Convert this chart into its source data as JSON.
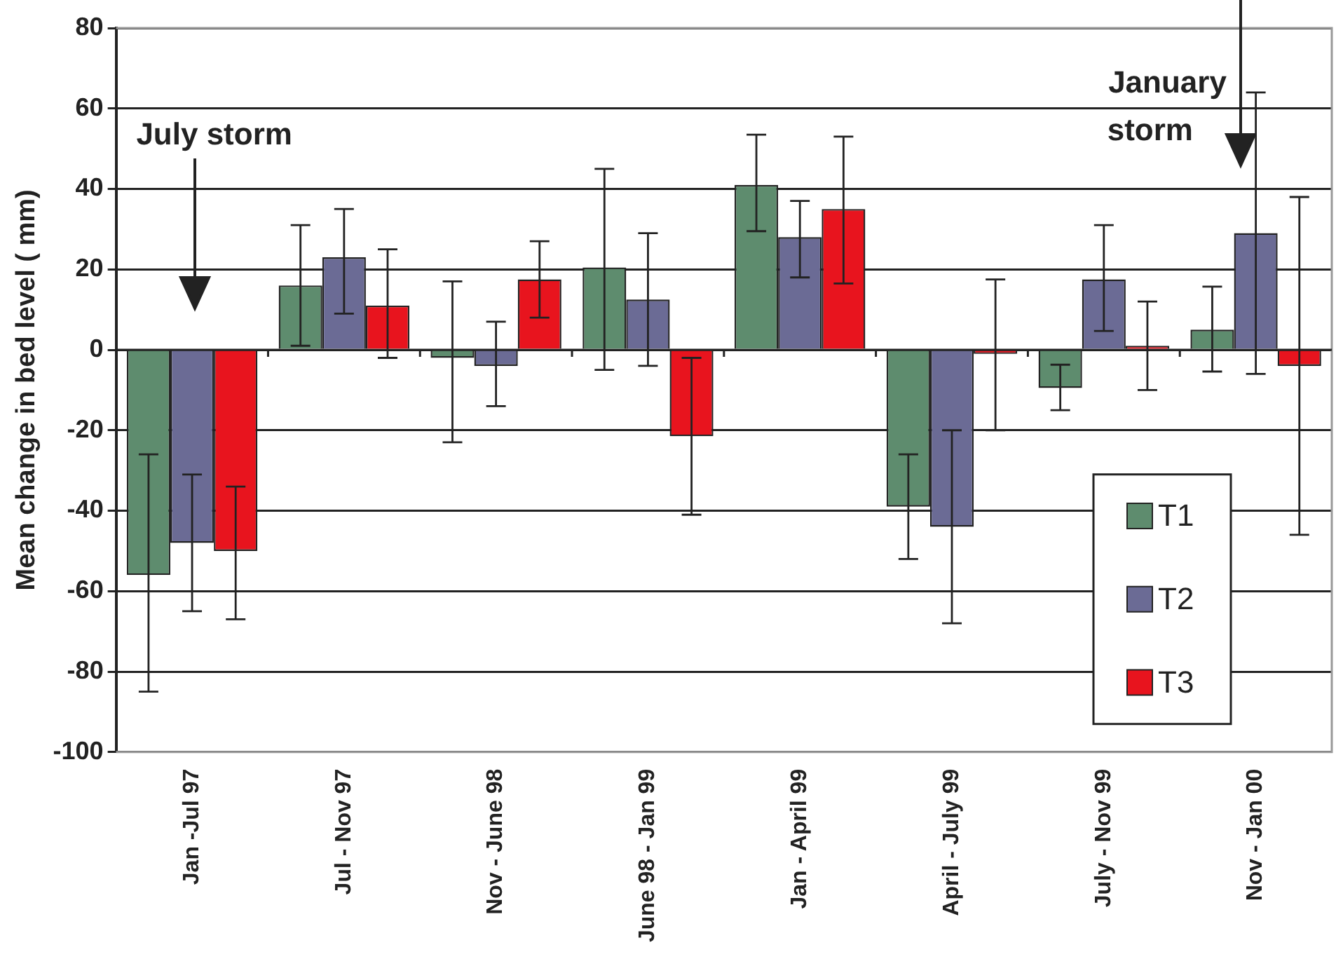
{
  "chart_data": {
    "type": "bar",
    "ylabel": "Mean change in bed level ( mm)",
    "categories": [
      "Jan -Jul 97",
      "Jul - Nov 97",
      "Nov - June 98",
      "June 98 - Jan 99",
      "Jan - April 99",
      "April - July 99",
      "July - Nov 99",
      "Nov - Jan 00"
    ],
    "series": [
      {
        "name": "T1",
        "color": "#5e8c6e",
        "values": [
          -56,
          16,
          -2,
          20.5,
          41,
          -39,
          -9.5,
          5
        ],
        "errors": [
          [
            -85,
            -26
          ],
          [
            1,
            31
          ],
          [
            -23,
            17
          ],
          [
            -5,
            45
          ],
          [
            29.5,
            53.5
          ],
          [
            -52,
            -26
          ],
          [
            -15,
            -3.7
          ],
          [
            -5.4,
            15.7
          ]
        ]
      },
      {
        "name": "T2",
        "color": "#6b6b95",
        "values": [
          -48,
          23,
          -4,
          12.5,
          28,
          -44,
          17.5,
          29
        ],
        "errors": [
          [
            -65,
            -31
          ],
          [
            9,
            35
          ],
          [
            -14,
            7
          ],
          [
            -4,
            29
          ],
          [
            18,
            37
          ],
          [
            -68,
            -20
          ],
          [
            4.7,
            31
          ],
          [
            -6,
            64
          ]
        ]
      },
      {
        "name": "T3",
        "color": "#e8141e",
        "values": [
          -50,
          11,
          17.5,
          -21.5,
          35,
          -1,
          1,
          -4
        ],
        "errors": [
          [
            -67,
            -34
          ],
          [
            -2,
            25
          ],
          [
            8,
            27
          ],
          [
            -41,
            -2
          ],
          [
            16.5,
            53
          ],
          [
            -20,
            17.5
          ],
          [
            -10,
            12
          ],
          [
            -46,
            38
          ]
        ]
      }
    ],
    "ylim": [
      -100,
      80
    ],
    "yticks": [
      -100,
      -80,
      -60,
      -40,
      -20,
      0,
      20,
      40,
      60,
      80
    ],
    "grid": "y",
    "legend": "bottom right",
    "annotations": [
      "July storm",
      "January storm"
    ]
  }
}
